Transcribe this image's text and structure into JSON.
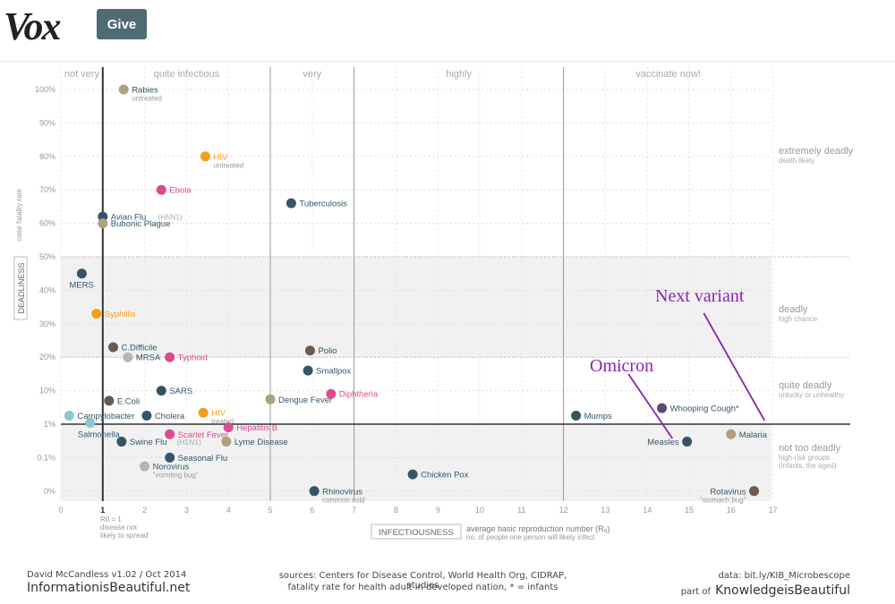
{
  "header": {
    "logo": "Vox",
    "give_label": "Give"
  },
  "chart_data": {
    "type": "scatter",
    "xlim": [
      0,
      17
    ],
    "x_ticks": [
      "0",
      "1",
      "2",
      "3",
      "4",
      "5",
      "6",
      "7",
      "8",
      "9",
      "10",
      "11",
      "12",
      "13",
      "14",
      "15",
      "16",
      "17"
    ],
    "y_ticks": [
      "0%",
      "0.1%",
      "1%",
      "10%",
      "20%",
      "30%",
      "40%",
      "50%",
      "60%",
      "70%",
      "80%",
      "90%",
      "100%"
    ],
    "xlabel_box": "INFECTIOUSNESS",
    "xlabel_line1": "average basic reproduction number (R₀)",
    "xlabel_line2": "no. of people one person will likely infect",
    "ylabel_box": "DEADLINESS",
    "ylabel_small": "case fatality rate",
    "r0_note": [
      "R0 = 1",
      "disease not",
      "likely to spread"
    ],
    "top_bands": [
      "not very",
      "quite infectious",
      "very",
      "highly",
      "vaccinate now!"
    ],
    "right_bands": [
      {
        "title": "extremely deadly",
        "sub": [
          "death likely"
        ]
      },
      {
        "title": "deadly",
        "sub": [
          "high chance"
        ]
      },
      {
        "title": "quite deadly",
        "sub": [
          "unlucky or unhealthy"
        ]
      },
      {
        "title": "not too deadly",
        "sub": [
          "high-risk groups",
          "(infants, the aged)"
        ]
      }
    ],
    "colors": {
      "navy": "#355566",
      "gold": "#aea27c",
      "orange": "#f2a01c",
      "pink": "#dd4a8f",
      "brown": "#6a5a50",
      "teal": "#8ec5cf",
      "grey": "#b5b5b5",
      "purple": "#5a4a78",
      "annotation": "#8b22b5"
    },
    "points": [
      {
        "name": "Rabies",
        "note": "untreated",
        "x": 1.5,
        "y": "100%",
        "color": "gold",
        "label": "right"
      },
      {
        "name": "HIV",
        "note": "untreated",
        "x": 3.45,
        "y": "80%",
        "color": "orange",
        "label": "right"
      },
      {
        "name": "Ebola",
        "x": 2.4,
        "y": "70%",
        "color": "pink",
        "label": "right"
      },
      {
        "name": "Tuberculosis",
        "x": 5.5,
        "y": "66%",
        "color": "navy",
        "label": "right"
      },
      {
        "name": "Avian Flu",
        "tag": "(H5N1)",
        "x": 1.0,
        "y": "62%",
        "color": "navy",
        "label": "right"
      },
      {
        "name": "Bubonic Plague",
        "x": 1.0,
        "y": "60%",
        "color": "gold",
        "label": "right"
      },
      {
        "name": "MERS",
        "x": 0.5,
        "y": "45%",
        "color": "navy",
        "label": "below"
      },
      {
        "name": "Syphillis",
        "x": 0.85,
        "y": "33%",
        "color": "orange",
        "label": "right"
      },
      {
        "name": "C.Difficile",
        "x": 1.25,
        "y": "23%",
        "color": "brown",
        "label": "right"
      },
      {
        "name": "MRSA",
        "x": 1.6,
        "y": "20%",
        "color": "grey",
        "label": "right"
      },
      {
        "name": "Typhoid",
        "x": 2.6,
        "y": "20%",
        "color": "pink",
        "label": "right"
      },
      {
        "name": "Polio",
        "x": 5.95,
        "y": "22%",
        "color": "brown",
        "label": "right"
      },
      {
        "name": "Smallpox",
        "x": 5.9,
        "y": "16%",
        "color": "navy",
        "label": "right"
      },
      {
        "name": "SARS",
        "x": 2.4,
        "y": "10%",
        "color": "navy",
        "label": "right"
      },
      {
        "name": "Diphtheria",
        "x": 6.45,
        "y": "8%",
        "color": "pink",
        "label": "right"
      },
      {
        "name": "E.Coli",
        "x": 1.15,
        "y": "5%",
        "color": "brown",
        "label": "right"
      },
      {
        "name": "Dengue Fever",
        "x": 5.0,
        "y": "5.5%",
        "color": "gold",
        "label": "right"
      },
      {
        "name": "Campylobacter",
        "x": 0.2,
        "y": "1.8%",
        "color": "teal",
        "label": "right"
      },
      {
        "name": "Salmonella",
        "x": 0.7,
        "y": "1.1%",
        "color": "teal",
        "label": "below"
      },
      {
        "name": "Cholera",
        "x": 2.05,
        "y": "1.8%",
        "color": "navy",
        "label": "right"
      },
      {
        "name": "HIV",
        "note": "treated",
        "x": 3.4,
        "y": "2.2%",
        "color": "orange",
        "label": "right"
      },
      {
        "name": "Hepatitis B",
        "x": 4.0,
        "y": "0.8%",
        "color": "pink",
        "label": "right"
      },
      {
        "name": "Scarlet Fever",
        "x": 2.6,
        "y": "0.5%",
        "color": "pink",
        "label": "right"
      },
      {
        "name": "Lyme Disease",
        "x": 3.95,
        "y": "0.3%",
        "color": "gold",
        "label": "right"
      },
      {
        "name": "Swine Flu",
        "tag": "(H1N1)",
        "x": 1.45,
        "y": "0.3%",
        "color": "navy",
        "label": "right"
      },
      {
        "name": "Seasonal Flu",
        "x": 2.6,
        "y": "0.1%",
        "color": "navy",
        "label": "right"
      },
      {
        "name": "Norovirus",
        "note": "\"vomiting bug\"",
        "x": 2.0,
        "y": "0.03%",
        "color": "grey",
        "label": "right"
      },
      {
        "name": "Rhinovirus",
        "note": "common cold",
        "x": 6.05,
        "y": "0.001%",
        "color": "navy",
        "label": "right"
      },
      {
        "name": "Chicken Pox",
        "x": 8.4,
        "y": "0.01%",
        "color": "navy",
        "label": "right"
      },
      {
        "name": "Mumps",
        "x": 12.3,
        "y": "1.8%",
        "color": "navy",
        "label": "right"
      },
      {
        "name": "Whooping Cough*",
        "x": 14.35,
        "y": "3%",
        "color": "purple",
        "label": "right"
      },
      {
        "name": "Measles",
        "x": 14.95,
        "y": "0.3%",
        "color": "navy",
        "label": "left"
      },
      {
        "name": "Malaria",
        "x": 16.0,
        "y": "0.5%",
        "color": "gold",
        "label": "right"
      },
      {
        "name": "Rotavirus",
        "note": "\"stomach bug\"",
        "x": 16.55,
        "y": "0.001%",
        "color": "brown",
        "label": "left"
      }
    ],
    "annotations": [
      {
        "text": "Next variant",
        "line_x": [
          15.35,
          16.8
        ]
      },
      {
        "text": "Omicron",
        "line_x": [
          13.55,
          14.6
        ]
      }
    ]
  },
  "footer": {
    "author": "David McCandless v1.02 / Oct 2014",
    "site": "InformationisBeautiful.net",
    "sources": "sources: Centers for Disease Control, World Health Org, CIDRAP, studies",
    "note": "fatality rate for health adult in developed nation, * = infants",
    "data": "data: bit.ly/KIB_Microbescope",
    "part_of": "part of",
    "kb": "KnowledgeisBeautiful"
  }
}
